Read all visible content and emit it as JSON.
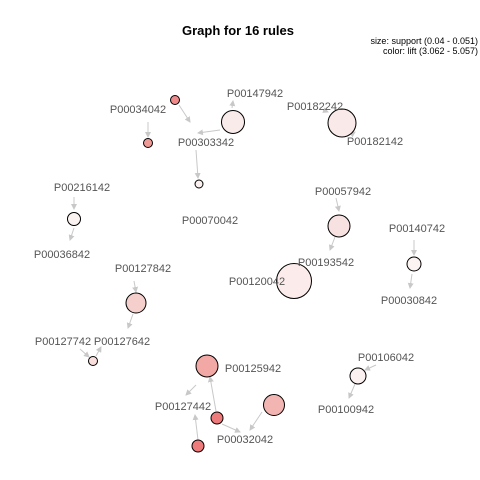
{
  "title": "Graph for 16 rules",
  "legend": {
    "size": "size: support (0.04 - 0.051)",
    "color": "color: lift (3.062 - 5.057)"
  },
  "colors": {
    "edge": "#c8c8c8",
    "label": "#555555",
    "lift_low": "#fbeeee",
    "lift_high": "#ee7b7b"
  },
  "items": [
    "P00034042",
    "P00147942",
    "P00303342",
    "P00182242",
    "P00182142",
    "P00070042",
    "P00216142",
    "P00036842",
    "P00057942",
    "P00140742",
    "P00193542",
    "P00120042",
    "P00030842",
    "P00127842",
    "P00127742",
    "P00127642",
    "P00125942",
    "P00106042",
    "P00127442",
    "P00100942",
    "P00032042"
  ]
}
